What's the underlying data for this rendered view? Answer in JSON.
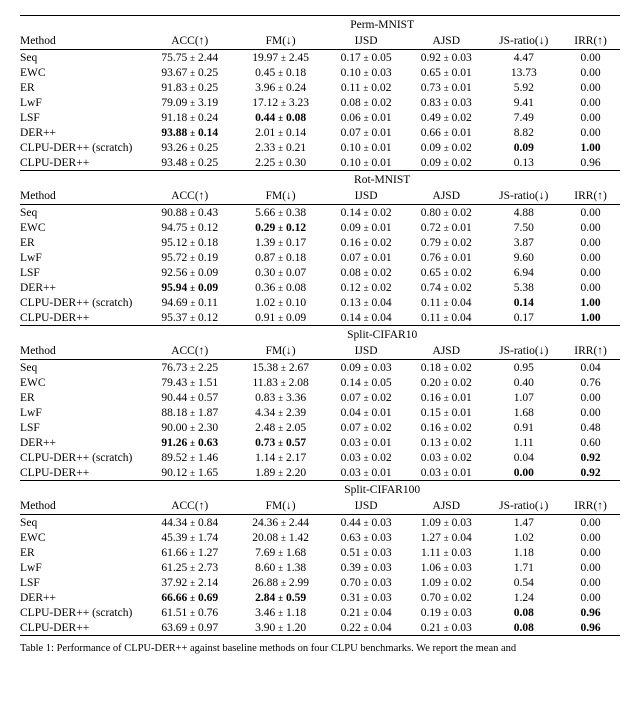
{
  "columns": {
    "method": "Method",
    "acc": "ACC(↑)",
    "fm": "FM(↓)",
    "ijsd": "IJSD",
    "ajsd": "AJSD",
    "js": "JS-ratio(↓)",
    "irr": "IRR(↑)"
  },
  "sections": [
    {
      "title": "Perm-MNIST",
      "rows": [
        {
          "method": "Seq",
          "acc": "75.75 ± 2.44",
          "fm": "19.97 ± 2.45",
          "ijsd": "0.17 ± 0.05",
          "ajsd": "0.92 ± 0.03",
          "js": "4.47",
          "irr": "0.00"
        },
        {
          "method": "EWC",
          "acc": "93.67 ± 0.25",
          "fm": "0.45 ± 0.18",
          "ijsd": "0.10 ± 0.03",
          "ajsd": "0.65 ± 0.01",
          "js": "13.73",
          "irr": "0.00"
        },
        {
          "method": "ER",
          "acc": "91.83 ± 0.25",
          "fm": "3.96 ± 0.24",
          "ijsd": "0.11 ± 0.02",
          "ajsd": "0.73 ± 0.01",
          "js": "5.92",
          "irr": "0.00"
        },
        {
          "method": "LwF",
          "acc": "79.09 ± 3.19",
          "fm": "17.12 ± 3.23",
          "ijsd": "0.08 ± 0.02",
          "ajsd": "0.83 ± 0.03",
          "js": "9.41",
          "irr": "0.00"
        },
        {
          "method": "LSF",
          "acc": "91.18 ± 0.24",
          "fm": "0.44 ± 0.08",
          "fm_bold": true,
          "ijsd": "0.06 ± 0.01",
          "ajsd": "0.49 ± 0.02",
          "js": "7.49",
          "irr": "0.00"
        },
        {
          "method": "DER++",
          "acc": "93.88 ± 0.14",
          "acc_bold": true,
          "fm": "2.01 ± 0.14",
          "ijsd": "0.07 ± 0.01",
          "ajsd": "0.66 ± 0.01",
          "js": "8.82",
          "irr": "0.00"
        },
        {
          "method": "CLPU-DER++ (scratch)",
          "acc": "93.26 ± 0.25",
          "fm": "2.33 ± 0.21",
          "ijsd": "0.10 ± 0.01",
          "ajsd": "0.09 ± 0.02",
          "js": "0.09",
          "js_bold": true,
          "irr": "1.00",
          "irr_bold": true
        },
        {
          "method": "CLPU-DER++",
          "acc": "93.48 ± 0.25",
          "fm": "2.25 ± 0.30",
          "ijsd": "0.10 ± 0.01",
          "ajsd": "0.09 ± 0.02",
          "js": "0.13",
          "irr": "0.96"
        }
      ]
    },
    {
      "title": "Rot-MNIST",
      "rows": [
        {
          "method": "Seq",
          "acc": "90.88 ± 0.43",
          "fm": "5.66 ± 0.38",
          "ijsd": "0.14 ± 0.02",
          "ajsd": "0.80 ± 0.02",
          "js": "4.88",
          "irr": "0.00"
        },
        {
          "method": "EWC",
          "acc": "94.75 ± 0.12",
          "fm": "0.29 ± 0.12",
          "fm_bold": true,
          "ijsd": "0.09 ± 0.01",
          "ajsd": "0.72 ± 0.01",
          "js": "7.50",
          "irr": "0.00"
        },
        {
          "method": "ER",
          "acc": "95.12 ± 0.18",
          "fm": "1.39 ± 0.17",
          "ijsd": "0.16 ± 0.02",
          "ajsd": "0.79 ± 0.02",
          "js": "3.87",
          "irr": "0.00"
        },
        {
          "method": "LwF",
          "acc": "95.72 ± 0.19",
          "fm": "0.87 ± 0.18",
          "ijsd": "0.07 ± 0.01",
          "ajsd": "0.76 ± 0.01",
          "js": "9.60",
          "irr": "0.00"
        },
        {
          "method": "LSF",
          "acc": "92.56 ± 0.09",
          "fm": "0.30 ± 0.07",
          "ijsd": "0.08 ± 0.02",
          "ajsd": "0.65 ± 0.02",
          "js": "6.94",
          "irr": "0.00"
        },
        {
          "method": "DER++",
          "acc": "95.94 ± 0.09",
          "acc_bold": true,
          "fm": "0.36 ± 0.08",
          "ijsd": "0.12 ± 0.02",
          "ajsd": "0.74 ± 0.02",
          "js": "5.38",
          "irr": "0.00"
        },
        {
          "method": "CLPU-DER++ (scratch)",
          "acc": "94.69 ± 0.11",
          "fm": "1.02 ± 0.10",
          "ijsd": "0.13 ± 0.04",
          "ajsd": "0.11 ± 0.04",
          "js": "0.14",
          "js_bold": true,
          "irr": "1.00",
          "irr_bold": true
        },
        {
          "method": "CLPU-DER++",
          "acc": "95.37 ± 0.12",
          "fm": "0.91 ± 0.09",
          "ijsd": "0.14 ± 0.04",
          "ajsd": "0.11 ± 0.04",
          "js": "0.17",
          "irr": "1.00",
          "irr_bold": true
        }
      ]
    },
    {
      "title": "Split-CIFAR10",
      "rows": [
        {
          "method": "Seq",
          "acc": "76.73 ± 2.25",
          "fm": "15.38 ± 2.67",
          "ijsd": "0.09 ± 0.03",
          "ajsd": "0.18 ± 0.02",
          "js": "0.95",
          "irr": "0.04"
        },
        {
          "method": "EWC",
          "acc": "79.43 ± 1.51",
          "fm": "11.83 ± 2.08",
          "ijsd": "0.14 ± 0.05",
          "ajsd": "0.20 ± 0.02",
          "js": "0.40",
          "irr": "0.76"
        },
        {
          "method": "ER",
          "acc": "90.44 ± 0.57",
          "fm": "0.83 ± 3.36",
          "ijsd": "0.07 ± 0.02",
          "ajsd": "0.16 ± 0.01",
          "js": "1.07",
          "irr": "0.00"
        },
        {
          "method": "LwF",
          "acc": "88.18 ± 1.87",
          "fm": "4.34 ± 2.39",
          "ijsd": "0.04 ± 0.01",
          "ajsd": "0.15 ± 0.01",
          "js": "1.68",
          "irr": "0.00"
        },
        {
          "method": "LSF",
          "acc": "90.00 ± 2.30",
          "fm": "2.48 ± 2.05",
          "ijsd": "0.07 ± 0.02",
          "ajsd": "0.16 ± 0.02",
          "js": "0.91",
          "irr": "0.48"
        },
        {
          "method": "DER++",
          "acc": "91.26 ± 0.63",
          "acc_bold": true,
          "fm": "0.73 ± 0.57",
          "fm_bold": true,
          "ijsd": "0.03 ± 0.01",
          "ajsd": "0.13 ± 0.02",
          "js": "1.11",
          "irr": "0.60"
        },
        {
          "method": "CLPU-DER++ (scratch)",
          "acc": "89.52 ± 1.46",
          "fm": "1.14 ± 2.17",
          "ijsd": "0.03 ± 0.02",
          "ajsd": "0.03 ± 0.02",
          "js": "0.04",
          "irr": "0.92",
          "irr_bold": true
        },
        {
          "method": "CLPU-DER++",
          "acc": "90.12 ± 1.65",
          "fm": "1.89 ± 2.20",
          "ijsd": "0.03 ± 0.01",
          "ajsd": "0.03 ± 0.01",
          "js": "0.00",
          "js_bold": true,
          "irr": "0.92",
          "irr_bold": true
        }
      ]
    },
    {
      "title": "Split-CIFAR100",
      "rows": [
        {
          "method": "Seq",
          "acc": "44.34 ± 0.84",
          "fm": "24.36 ± 2.44",
          "ijsd": "0.44 ± 0.03",
          "ajsd": "1.09 ± 0.03",
          "js": "1.47",
          "irr": "0.00"
        },
        {
          "method": "EWC",
          "acc": "45.39 ± 1.74",
          "fm": "20.08 ± 1.42",
          "ijsd": "0.63 ± 0.03",
          "ajsd": "1.27 ± 0.04",
          "js": "1.02",
          "irr": "0.00"
        },
        {
          "method": "ER",
          "acc": "61.66 ± 1.27",
          "fm": "7.69 ± 1.68",
          "ijsd": "0.51 ± 0.03",
          "ajsd": "1.11 ± 0.03",
          "js": "1.18",
          "irr": "0.00"
        },
        {
          "method": "LwF",
          "acc": "61.25 ± 2.73",
          "fm": "8.60 ± 1.38",
          "ijsd": "0.39 ± 0.03",
          "ajsd": "1.06 ± 0.03",
          "js": "1.71",
          "irr": "0.00"
        },
        {
          "method": "LSF",
          "acc": "37.92 ± 2.14",
          "fm": "26.88 ± 2.99",
          "ijsd": "0.70 ± 0.03",
          "ajsd": "1.09 ± 0.02",
          "js": "0.54",
          "irr": "0.00"
        },
        {
          "method": "DER++",
          "acc": "66.66 ± 0.69",
          "acc_bold": true,
          "fm": "2.84 ± 0.59",
          "fm_bold": true,
          "ijsd": "0.31 ± 0.03",
          "ajsd": "0.70 ± 0.02",
          "js": "1.24",
          "irr": "0.00"
        },
        {
          "method": "CLPU-DER++ (scratch)",
          "acc": "61.51 ± 0.76",
          "fm": "3.46 ± 1.18",
          "ijsd": "0.21 ± 0.04",
          "ajsd": "0.19 ± 0.03",
          "js": "0.08",
          "js_bold": true,
          "irr": "0.96",
          "irr_bold": true
        },
        {
          "method": "CLPU-DER++",
          "acc": "63.69 ± 0.97",
          "fm": "3.90 ± 1.20",
          "ijsd": "0.22 ± 0.04",
          "ajsd": "0.21 ± 0.03",
          "js": "0.08",
          "js_bold": true,
          "irr": "0.96",
          "irr_bold": true
        }
      ]
    }
  ],
  "caption": "Table 1: Performance of CLPU-DER++ against baseline methods on four CLPU benchmarks. We report the mean and"
}
